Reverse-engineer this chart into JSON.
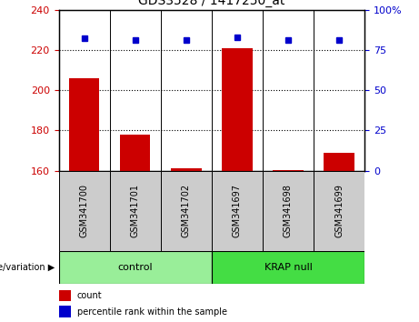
{
  "title": "GDS3528 / 1417250_at",
  "samples": [
    "GSM341700",
    "GSM341701",
    "GSM341702",
    "GSM341697",
    "GSM341698",
    "GSM341699"
  ],
  "bar_values": [
    206,
    178,
    161,
    221,
    160.5,
    169
  ],
  "percentile_values": [
    82,
    81,
    81,
    83,
    81,
    81
  ],
  "bar_color": "#cc0000",
  "dot_color": "#0000cc",
  "ylim_left": [
    160,
    240
  ],
  "ylim_right": [
    0,
    100
  ],
  "yticks_left": [
    160,
    180,
    200,
    220,
    240
  ],
  "yticks_right": [
    0,
    25,
    50,
    75,
    100
  ],
  "groups": [
    {
      "label": "control",
      "indices": [
        0,
        1,
        2
      ],
      "color": "#99ee99"
    },
    {
      "label": "KRAP null",
      "indices": [
        3,
        4,
        5
      ],
      "color": "#44dd44"
    }
  ],
  "group_row_label": "genotype/variation",
  "legend_count_label": "count",
  "legend_percentile_label": "percentile rank within the sample",
  "grid_color": "black",
  "bar_width": 0.6,
  "baseline": 160,
  "sample_label_area_color": "#cccccc",
  "plot_bg_color": "#ffffff"
}
